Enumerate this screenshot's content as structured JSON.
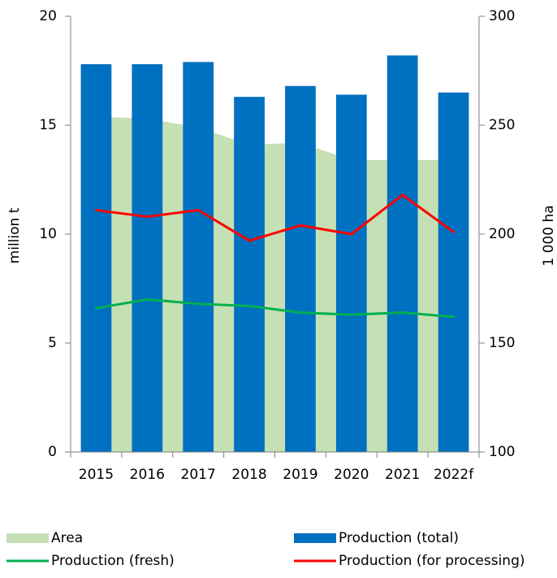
{
  "chart_data": {
    "type": "bar",
    "categories": [
      "2015",
      "2016",
      "2017",
      "2018",
      "2019",
      "2020",
      "2021",
      "2022f"
    ],
    "series": [
      {
        "name": "Area",
        "type": "area",
        "axis": "y2",
        "color": "#c5e0b4",
        "values": [
          254,
          253,
          249,
          241,
          242,
          234,
          234,
          234
        ]
      },
      {
        "name": "Production (total)",
        "type": "bar",
        "color": "#0070c0",
        "values": [
          17.8,
          17.8,
          17.9,
          16.3,
          16.8,
          16.4,
          18.2,
          16.5
        ]
      },
      {
        "name": "Production (fresh)",
        "type": "line",
        "color": "#00b050",
        "values": [
          6.6,
          7.0,
          6.8,
          6.7,
          6.4,
          6.3,
          6.4,
          6.2
        ]
      },
      {
        "name": "Production (for processing)",
        "type": "line",
        "color": "#ff0000",
        "values": [
          11.1,
          10.8,
          11.1,
          9.7,
          10.4,
          10.0,
          11.8,
          10.1
        ]
      }
    ],
    "y_label": "million t",
    "y2_label": "1 000 ha",
    "ylim": [
      0,
      20
    ],
    "yticks": [
      0,
      5,
      10,
      15,
      20
    ],
    "y2lim": [
      100,
      300
    ],
    "y2ticks": [
      100,
      150,
      200,
      250,
      300
    ]
  }
}
